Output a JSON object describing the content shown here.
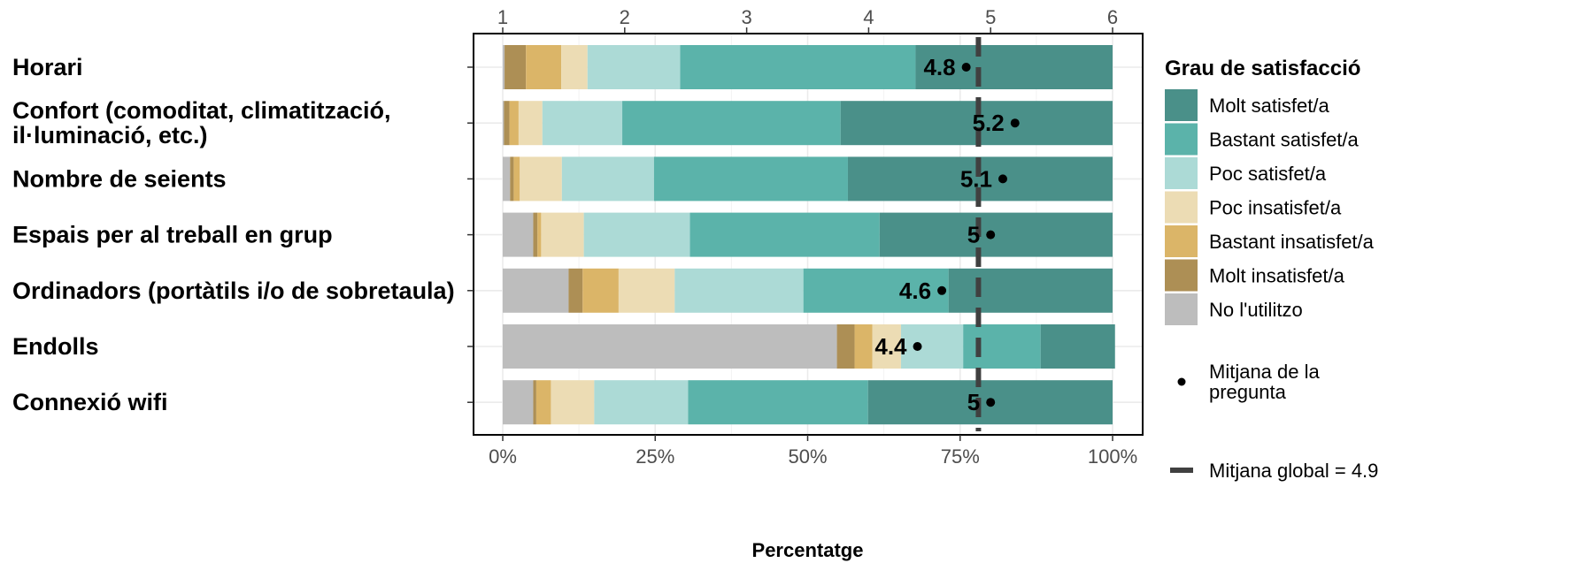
{
  "chart_data": {
    "type": "bar",
    "orientation": "horizontal",
    "stacked": true,
    "xlabel": "Percentatge",
    "xlim": [
      0,
      100
    ],
    "x_ticks": [
      "0%",
      "25%",
      "50%",
      "75%",
      "100%"
    ],
    "top_axis_ticks": [
      "1",
      "2",
      "3",
      "4",
      "5",
      "6"
    ],
    "top_axis_range": [
      1,
      6
    ],
    "categories": [
      "Horari",
      "Confort (comoditat, climatització,\nil·luminació, etc.)",
      "Nombre de seients",
      "Espais per al treball en grup",
      "Ordinadors (portàtils i/o de sobretaula)",
      "Endolls",
      "Connexió wifi"
    ],
    "legend_title": "Grau de satisfacció",
    "legend_position": "right",
    "series": [
      {
        "name": "No l'utilitzo",
        "color": "#bdbdbd",
        "values": [
          0.3,
          0.2,
          1.2,
          5.0,
          10.8,
          54.8,
          5.0
        ]
      },
      {
        "name": "Molt insatisfet/a",
        "color": "#ad8f55",
        "values": [
          3.5,
          0.9,
          0.6,
          0.7,
          2.3,
          2.9,
          0.5
        ]
      },
      {
        "name": "Bastant insatisfet/a",
        "color": "#dbb568",
        "values": [
          5.8,
          1.5,
          1.0,
          0.6,
          5.9,
          2.9,
          2.4
        ]
      },
      {
        "name": "Poc insatisfet/a",
        "color": "#ecdcb4",
        "values": [
          4.3,
          3.9,
          6.9,
          7.0,
          9.2,
          4.7,
          7.1
        ]
      },
      {
        "name": "Poc satisfet/a",
        "color": "#acdad6",
        "values": [
          15.2,
          13.1,
          15.1,
          17.4,
          21.1,
          10.2,
          15.4
        ]
      },
      {
        "name": "Bastant satisfet/a",
        "color": "#5bb3aa",
        "values": [
          38.6,
          35.8,
          31.8,
          31.1,
          23.8,
          12.7,
          29.5
        ]
      },
      {
        "name": "Molt satisfet/a",
        "color": "#4a9089",
        "values": [
          32.3,
          44.6,
          43.4,
          38.2,
          26.9,
          12.2,
          40.1
        ]
      }
    ],
    "legend_order": [
      "Molt satisfet/a",
      "Bastant satisfet/a",
      "Poc satisfet/a",
      "Poc insatisfet/a",
      "Bastant insatisfet/a",
      "Molt insatisfet/a",
      "No l'utilitzo"
    ],
    "means": {
      "name": "Mitjana de la pregunta",
      "values": [
        4.8,
        5.2,
        5.1,
        5.0,
        4.6,
        4.4,
        5.0
      ],
      "labels": [
        "4.8",
        "5.2",
        "5.1",
        "5",
        "4.6",
        "4.4",
        "5"
      ]
    },
    "global_mean": {
      "label": "Mitjana global = ",
      "value": 4.9,
      "value_text": "4.9"
    },
    "grid": true
  }
}
